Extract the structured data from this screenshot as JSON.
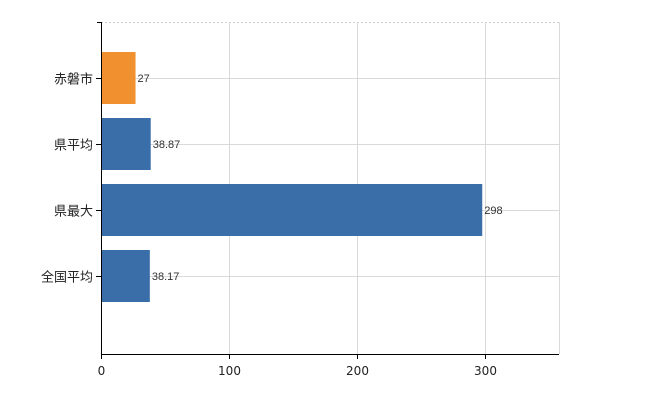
{
  "chart_data": {
    "type": "bar",
    "orientation": "horizontal",
    "categories": [
      "赤磐市",
      "県平均",
      "県最大",
      "全国平均"
    ],
    "values": [
      27,
      38.87,
      298,
      38.17
    ],
    "data_labels": [
      "27",
      "38.87",
      "298",
      "38.17"
    ],
    "bar_colors": [
      "#f0902f",
      "#3a6ea8",
      "#3a6ea8",
      "#3a6ea8"
    ],
    "xlim": [
      0,
      358
    ],
    "x_ticks": [
      0,
      100,
      200,
      300
    ],
    "x_tick_labels": [
      "0",
      "100",
      "200",
      "300"
    ],
    "grid": true,
    "legend": "none"
  },
  "colors": {
    "highlight": "#f0902f",
    "default": "#3a6ea8",
    "grid": "#d9d9d9",
    "axis": "#000000"
  }
}
